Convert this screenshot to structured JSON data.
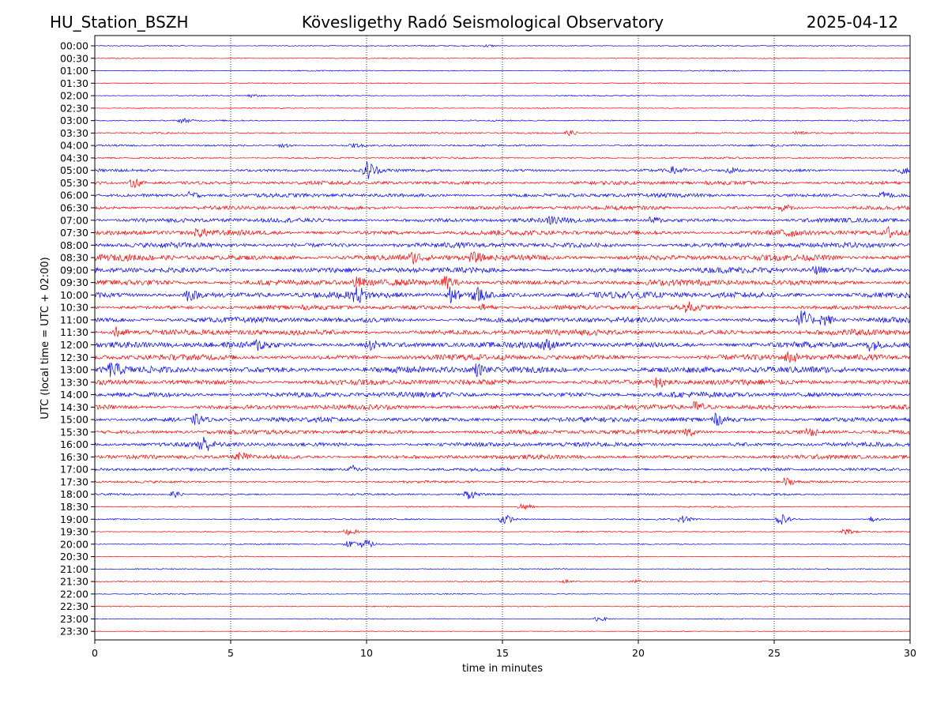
{
  "header": {
    "station": "HU_Station_BSZH",
    "observatory": "Kövesligethy Radó Seismological Observatory",
    "date": "2025-04-12"
  },
  "chart_data": {
    "type": "line",
    "subtype": "helicorder",
    "xlabel": "time in minutes",
    "ylabel": "UTC (local time = UTC + 02:00)",
    "xlim": [
      0,
      30
    ],
    "xticks": [
      0,
      5,
      10,
      15,
      20,
      25,
      30
    ],
    "vertical_gridlines": [
      5,
      10,
      15,
      20,
      25
    ],
    "grid": "vertical-dotted",
    "trace_colors": [
      "#0000ff",
      "#ff0000"
    ],
    "rows": [
      "00:00",
      "00:30",
      "01:00",
      "01:30",
      "02:00",
      "02:30",
      "03:00",
      "03:30",
      "04:00",
      "04:30",
      "05:00",
      "05:30",
      "06:00",
      "06:30",
      "07:00",
      "07:30",
      "08:00",
      "08:30",
      "09:00",
      "09:30",
      "10:00",
      "10:30",
      "11:00",
      "11:30",
      "12:00",
      "12:30",
      "13:00",
      "13:30",
      "14:00",
      "14:30",
      "15:00",
      "15:30",
      "16:00",
      "16:30",
      "17:00",
      "17:30",
      "18:00",
      "18:30",
      "19:00",
      "19:30",
      "20:00",
      "20:30",
      "21:00",
      "21:30",
      "22:00",
      "22:30",
      "23:00",
      "23:30"
    ],
    "noise_level": [
      0.6,
      0.5,
      0.6,
      0.5,
      0.6,
      0.5,
      0.7,
      0.8,
      1.0,
      0.9,
      1.6,
      2.0,
      2.1,
      2.1,
      2.3,
      2.6,
      2.7,
      3.1,
      3.0,
      3.2,
      3.3,
      2.4,
      2.8,
      3.0,
      3.1,
      3.0,
      3.4,
      2.9,
      2.8,
      2.6,
      2.6,
      2.3,
      2.4,
      2.2,
      1.6,
      1.2,
      1.0,
      0.7,
      0.8,
      0.6,
      0.6,
      0.5,
      0.6,
      0.5,
      0.5,
      0.5,
      0.5,
      0.4
    ],
    "events": [
      {
        "row": "00:00",
        "minute": 14.4,
        "amp": 1.5
      },
      {
        "row": "02:00",
        "minute": 5.7,
        "amp": 2.0
      },
      {
        "row": "03:00",
        "minute": 3.2,
        "amp": 2.5
      },
      {
        "row": "03:30",
        "minute": 17.4,
        "amp": 2.5
      },
      {
        "row": "03:30",
        "minute": 25.8,
        "amp": 2.0
      },
      {
        "row": "04:00",
        "minute": 6.9,
        "amp": 2.5
      },
      {
        "row": "04:00",
        "minute": 9.5,
        "amp": 2.0
      },
      {
        "row": "05:00",
        "minute": 10.0,
        "amp": 11.0
      },
      {
        "row": "05:00",
        "minute": 21.3,
        "amp": 4.0
      },
      {
        "row": "05:00",
        "minute": 23.3,
        "amp": 3.5
      },
      {
        "row": "05:00",
        "minute": 29.7,
        "amp": 3.5
      },
      {
        "row": "05:30",
        "minute": 1.4,
        "amp": 5.0
      },
      {
        "row": "06:00",
        "minute": 3.5,
        "amp": 4.0
      },
      {
        "row": "06:00",
        "minute": 29.0,
        "amp": 3.5
      },
      {
        "row": "06:30",
        "minute": 25.3,
        "amp": 3.5
      },
      {
        "row": "07:00",
        "minute": 16.8,
        "amp": 4.0
      },
      {
        "row": "07:00",
        "minute": 20.5,
        "amp": 3.5
      },
      {
        "row": "07:30",
        "minute": 3.8,
        "amp": 4.0
      },
      {
        "row": "07:30",
        "minute": 25.4,
        "amp": 6.0
      },
      {
        "row": "07:30",
        "minute": 29.2,
        "amp": 5.5
      },
      {
        "row": "08:30",
        "minute": 11.7,
        "amp": 5.0
      },
      {
        "row": "08:30",
        "minute": 13.9,
        "amp": 4.5
      },
      {
        "row": "09:00",
        "minute": 26.5,
        "amp": 4.0
      },
      {
        "row": "09:30",
        "minute": 9.6,
        "amp": 5.0
      },
      {
        "row": "09:30",
        "minute": 12.9,
        "amp": 6.0
      },
      {
        "row": "10:00",
        "minute": 3.4,
        "amp": 6.0
      },
      {
        "row": "10:00",
        "minute": 9.6,
        "amp": 8.0
      },
      {
        "row": "10:00",
        "minute": 13.0,
        "amp": 10.0
      },
      {
        "row": "10:00",
        "minute": 14.0,
        "amp": 9.0
      },
      {
        "row": "10:30",
        "minute": 14.3,
        "amp": 4.0
      },
      {
        "row": "10:30",
        "minute": 21.8,
        "amp": 5.0
      },
      {
        "row": "11:00",
        "minute": 26.0,
        "amp": 11.0
      },
      {
        "row": "11:00",
        "minute": 26.8,
        "amp": 7.0
      },
      {
        "row": "11:30",
        "minute": 0.8,
        "amp": 6.0
      },
      {
        "row": "12:00",
        "minute": 6.0,
        "amp": 5.0
      },
      {
        "row": "12:00",
        "minute": 10.1,
        "amp": 5.0
      },
      {
        "row": "12:00",
        "minute": 16.5,
        "amp": 5.0
      },
      {
        "row": "12:00",
        "minute": 28.5,
        "amp": 6.0
      },
      {
        "row": "12:30",
        "minute": 25.5,
        "amp": 6.0
      },
      {
        "row": "13:00",
        "minute": 0.6,
        "amp": 7.0
      },
      {
        "row": "13:00",
        "minute": 14.0,
        "amp": 6.0
      },
      {
        "row": "13:30",
        "minute": 20.7,
        "amp": 5.5
      },
      {
        "row": "14:30",
        "minute": 22.1,
        "amp": 6.0
      },
      {
        "row": "15:00",
        "minute": 3.7,
        "amp": 5.0
      },
      {
        "row": "15:00",
        "minute": 22.8,
        "amp": 5.5
      },
      {
        "row": "15:30",
        "minute": 21.8,
        "amp": 4.0
      },
      {
        "row": "15:30",
        "minute": 26.3,
        "amp": 4.0
      },
      {
        "row": "16:00",
        "minute": 3.9,
        "amp": 10.0
      },
      {
        "row": "16:30",
        "minute": 5.3,
        "amp": 4.0
      },
      {
        "row": "17:00",
        "minute": 9.5,
        "amp": 4.0
      },
      {
        "row": "17:30",
        "minute": 25.4,
        "amp": 4.5
      },
      {
        "row": "18:00",
        "minute": 2.8,
        "amp": 4.0
      },
      {
        "row": "18:00",
        "minute": 13.7,
        "amp": 5.5
      },
      {
        "row": "18:30",
        "minute": 15.7,
        "amp": 5.0
      },
      {
        "row": "19:00",
        "minute": 15.0,
        "amp": 6.0
      },
      {
        "row": "19:00",
        "minute": 21.6,
        "amp": 4.0
      },
      {
        "row": "19:00",
        "minute": 25.2,
        "amp": 6.5
      },
      {
        "row": "19:00",
        "minute": 28.6,
        "amp": 3.5
      },
      {
        "row": "19:30",
        "minute": 9.3,
        "amp": 3.5
      },
      {
        "row": "19:30",
        "minute": 27.6,
        "amp": 3.5
      },
      {
        "row": "20:00",
        "minute": 9.3,
        "amp": 4.0
      },
      {
        "row": "20:00",
        "minute": 9.9,
        "amp": 6.0
      },
      {
        "row": "21:30",
        "minute": 17.3,
        "amp": 2.0
      },
      {
        "row": "21:30",
        "minute": 19.8,
        "amp": 2.0
      },
      {
        "row": "23:00",
        "minute": 18.5,
        "amp": 2.5
      }
    ]
  }
}
